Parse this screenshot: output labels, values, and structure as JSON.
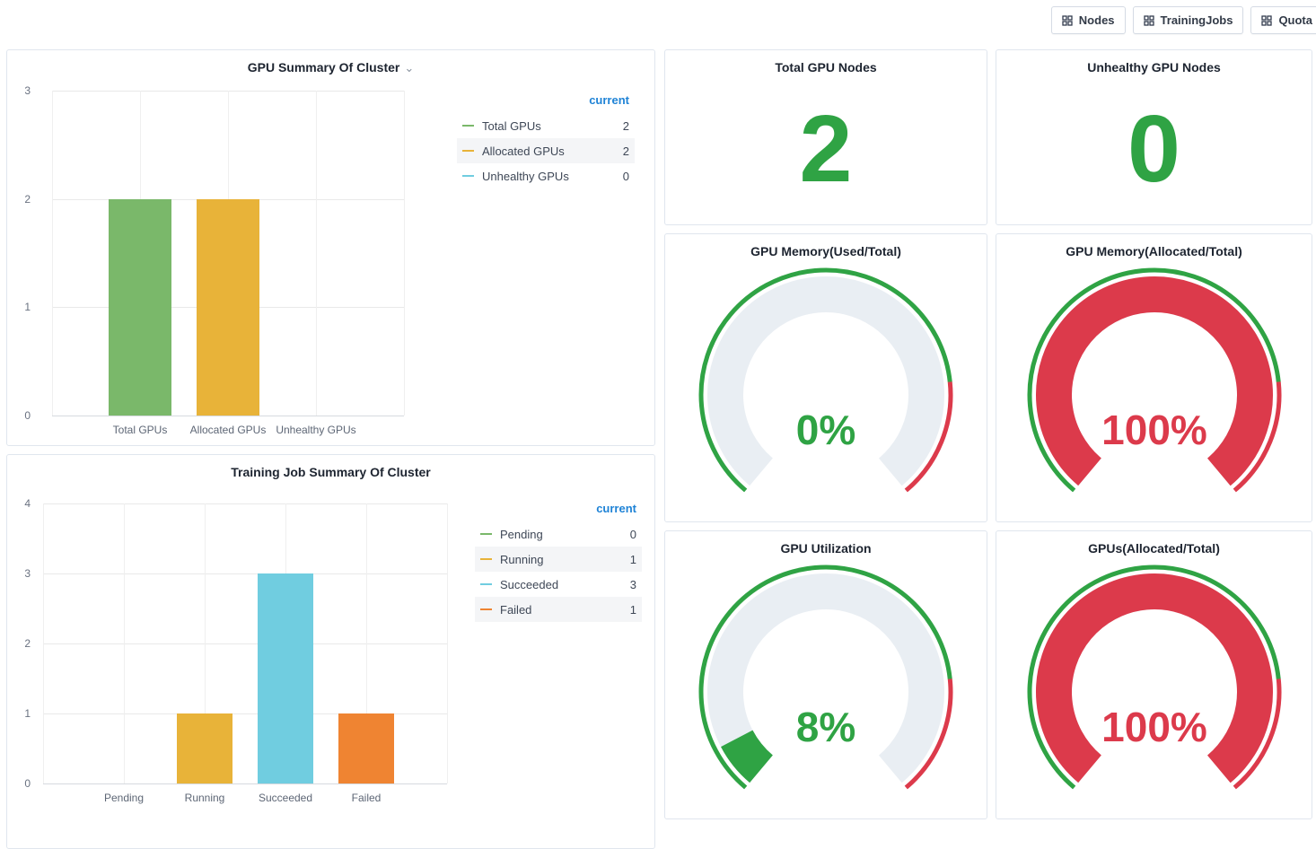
{
  "topbar": {
    "buttons": [
      {
        "label": "Nodes",
        "icon": "grid-icon"
      },
      {
        "label": "TrainingJobs",
        "icon": "grid-icon"
      },
      {
        "label": "Quota",
        "icon": "grid-icon"
      }
    ]
  },
  "icons": {
    "nav_button": "grid-icon",
    "panel_menu": "chevron-down-icon"
  },
  "colors": {
    "green": "#2fa344",
    "red": "#dc3a4b",
    "legend_header_blue": "#1f83d6",
    "gauge_track": "#e9eef3",
    "bar_green": "#7ab86a",
    "bar_yellow": "#e8b339",
    "bar_cyan": "#70cde0",
    "bar_orange": "#ef8432"
  },
  "stats": [
    {
      "title": "Total GPU Nodes",
      "value": "2",
      "color": "#2fa344"
    },
    {
      "title": "Unhealthy GPU Nodes",
      "value": "0",
      "color": "#2fa344"
    }
  ],
  "chart_data": [
    {
      "id": "gpu_summary",
      "type": "bar",
      "title": "GPU Summary Of Cluster",
      "categories": [
        "Total GPUs",
        "Allocated GPUs",
        "Unhealthy GPUs"
      ],
      "values": [
        2,
        2,
        0
      ],
      "bar_colors": [
        "#7ab86a",
        "#e8b339",
        "#70cde0"
      ],
      "ylim": [
        0,
        3
      ],
      "yticks": [
        0,
        1,
        2,
        3
      ],
      "grid": true,
      "legend_position": "right",
      "legend_header": "current",
      "legend": [
        {
          "label": "Total GPUs",
          "value": 2,
          "color": "#7ab86a"
        },
        {
          "label": "Allocated GPUs",
          "value": 2,
          "color": "#e8b339"
        },
        {
          "label": "Unhealthy GPUs",
          "value": 0,
          "color": "#70cde0"
        }
      ]
    },
    {
      "id": "training_summary",
      "type": "bar",
      "title": "Training Job Summary Of Cluster",
      "categories": [
        "Pending",
        "Running",
        "Succeeded",
        "Failed"
      ],
      "values": [
        0,
        1,
        3,
        1
      ],
      "bar_colors": [
        "#7ab86a",
        "#e8b339",
        "#70cde0",
        "#ef8432"
      ],
      "ylim": [
        0,
        4
      ],
      "yticks": [
        0,
        1,
        2,
        3,
        4
      ],
      "grid": true,
      "legend_position": "right",
      "legend_header": "current",
      "legend": [
        {
          "label": "Pending",
          "value": 0,
          "color": "#7ab86a"
        },
        {
          "label": "Running",
          "value": 1,
          "color": "#e8b339"
        },
        {
          "label": "Succeeded",
          "value": 3,
          "color": "#70cde0"
        },
        {
          "label": "Failed",
          "value": 1,
          "color": "#ef8432"
        }
      ]
    },
    {
      "id": "gpu_memory_used",
      "type": "gauge",
      "title": "GPU Memory(Used/Total)",
      "value": 0,
      "display": "0%",
      "min": 0,
      "max": 100,
      "color": "#2fa344",
      "thresholds": [
        {
          "to": 80,
          "color": "#2fa344"
        },
        {
          "to": 100,
          "color": "#dc3a4b"
        }
      ]
    },
    {
      "id": "gpu_memory_allocated",
      "type": "gauge",
      "title": "GPU Memory(Allocated/Total)",
      "value": 100,
      "display": "100%",
      "min": 0,
      "max": 100,
      "color": "#dc3a4b",
      "thresholds": [
        {
          "to": 80,
          "color": "#2fa344"
        },
        {
          "to": 100,
          "color": "#dc3a4b"
        }
      ]
    },
    {
      "id": "gpu_utilization",
      "type": "gauge",
      "title": "GPU Utilization",
      "value": 8,
      "display": "8%",
      "min": 0,
      "max": 100,
      "color": "#2fa344",
      "thresholds": [
        {
          "to": 80,
          "color": "#2fa344"
        },
        {
          "to": 100,
          "color": "#dc3a4b"
        }
      ]
    },
    {
      "id": "gpus_allocated",
      "type": "gauge",
      "title": "GPUs(Allocated/Total)",
      "value": 100,
      "display": "100%",
      "min": 0,
      "max": 100,
      "color": "#dc3a4b",
      "thresholds": [
        {
          "to": 80,
          "color": "#2fa344"
        },
        {
          "to": 100,
          "color": "#dc3a4b"
        }
      ]
    }
  ]
}
